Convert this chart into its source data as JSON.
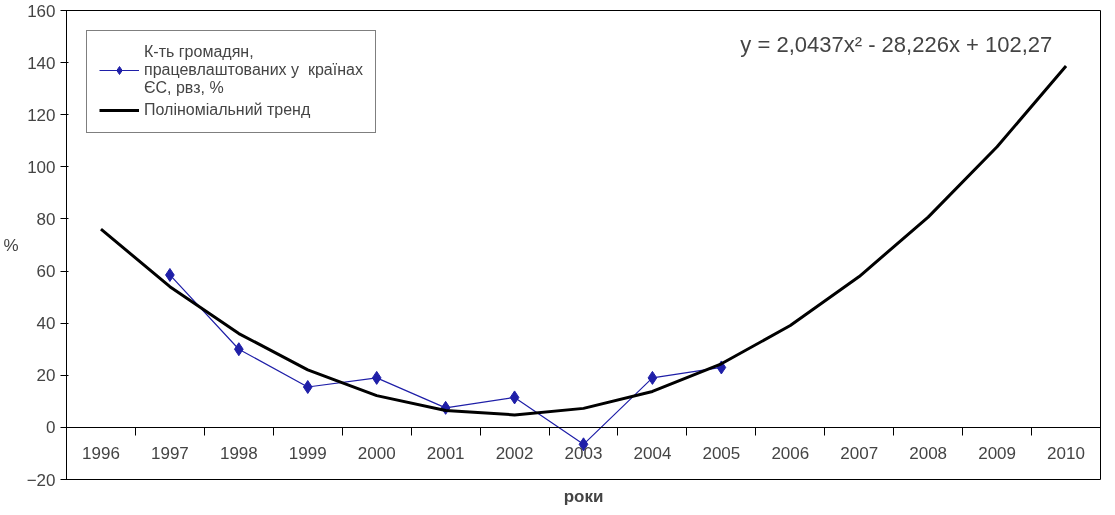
{
  "chart_data": {
    "type": "line",
    "xlabel": "роки",
    "ylabel": "%",
    "categories": [
      "1996",
      "1997",
      "1998",
      "1999",
      "2000",
      "2001",
      "2002",
      "2003",
      "2004",
      "2005",
      "2006",
      "2007",
      "2008",
      "2009",
      "2010"
    ],
    "series": [
      {
        "name": "К-ть громадян,\nпрацевлаштованих у  країнах\nЄС, рвз, %",
        "color": "#1f1fa8",
        "marker": "diamond",
        "values": [
          null,
          58.5,
          30,
          15.5,
          19,
          7.5,
          11.5,
          -6.5,
          19,
          23,
          null,
          null,
          null,
          null,
          null
        ]
      },
      {
        "name": "Поліноміальний тренд",
        "color": "#000000",
        "marker": "none",
        "values": [
          76.1,
          54.0,
          36.0,
          22.1,
          12.2,
          6.5,
          4.8,
          7.3,
          13.8,
          24.4,
          39.1,
          57.9,
          80.7,
          107.7,
          138.7
        ]
      }
    ],
    "ylim": [
      -20,
      160
    ],
    "yticks": [
      -20,
      0,
      20,
      40,
      60,
      80,
      100,
      120,
      140,
      160
    ],
    "grid": false,
    "legend": "top left",
    "annotations": [
      "y = 2,0437x² - 28,226x + 102,27"
    ]
  }
}
